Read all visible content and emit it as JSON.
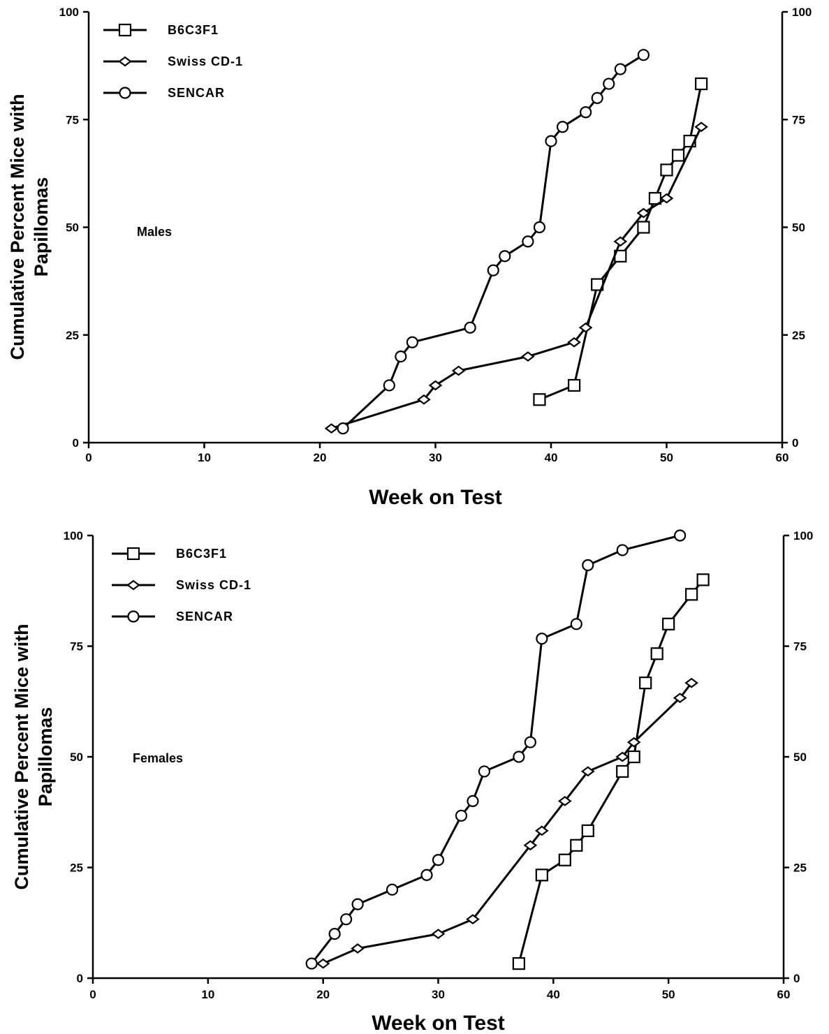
{
  "chart_data": [
    {
      "type": "line",
      "panel_label": "Males",
      "xlabel": "Week on Test",
      "ylabel_line1": "Cumulative Percent Mice with",
      "ylabel_line2": "Papillomas",
      "xlim": [
        0,
        60
      ],
      "ylim": [
        0,
        100
      ],
      "x_ticks": [
        "0",
        "10",
        "20",
        "30",
        "40",
        "50",
        "60"
      ],
      "y_ticks": [
        "0",
        "25",
        "50",
        "75",
        "100"
      ],
      "legend_position": "top-left",
      "series": [
        {
          "name": "B6C3F1",
          "marker": "square",
          "x": [
            39,
            42,
            44,
            46,
            48,
            49,
            50,
            51,
            52,
            53
          ],
          "y": [
            10,
            13.3,
            36.7,
            43.3,
            50,
            56.7,
            63.3,
            66.7,
            70,
            83.3
          ]
        },
        {
          "name": "Swiss CD-1",
          "marker": "diamond",
          "x": [
            21,
            29,
            30,
            32,
            38,
            42,
            43,
            46,
            48,
            50,
            53
          ],
          "y": [
            3.3,
            10,
            13.3,
            16.7,
            20,
            23.3,
            26.7,
            46.7,
            53.3,
            56.7,
            73.3
          ]
        },
        {
          "name": "SENCAR",
          "marker": "circle",
          "x": [
            22,
            26,
            27,
            28,
            33,
            35,
            36,
            38,
            39,
            40,
            41,
            43,
            44,
            45,
            46,
            48
          ],
          "y": [
            3.3,
            13.3,
            20,
            23.3,
            26.7,
            40,
            43.3,
            46.7,
            50,
            70,
            73.3,
            76.7,
            80,
            83.3,
            86.7,
            90
          ]
        }
      ]
    },
    {
      "type": "line",
      "panel_label": "Females",
      "xlabel": "Week on Test",
      "ylabel_line1": "Cumulative Percent Mice with",
      "ylabel_line2": "Papillomas",
      "xlim": [
        0,
        60
      ],
      "ylim": [
        0,
        100
      ],
      "x_ticks": [
        "0",
        "10",
        "20",
        "30",
        "40",
        "50",
        "60"
      ],
      "y_ticks": [
        "0",
        "25",
        "50",
        "75",
        "100"
      ],
      "legend_position": "top-left",
      "series": [
        {
          "name": "B6C3F1",
          "marker": "square",
          "x": [
            37,
            39,
            41,
            42,
            43,
            46,
            47,
            48,
            49,
            50,
            52,
            53
          ],
          "y": [
            3.3,
            23.3,
            26.7,
            30,
            33.3,
            46.7,
            50,
            66.7,
            73.3,
            80,
            86.7,
            90
          ]
        },
        {
          "name": "Swiss CD-1",
          "marker": "diamond",
          "x": [
            20,
            23,
            30,
            33,
            38,
            39,
            41,
            43,
            46,
            47,
            51,
            52
          ],
          "y": [
            3.3,
            6.7,
            10,
            13.3,
            30,
            33.3,
            40,
            46.7,
            50,
            53.3,
            63.3,
            66.7
          ]
        },
        {
          "name": "SENCAR",
          "marker": "circle",
          "x": [
            19,
            21,
            22,
            23,
            26,
            29,
            30,
            32,
            33,
            34,
            37,
            38,
            39,
            42,
            43,
            46,
            51
          ],
          "y": [
            3.3,
            10,
            13.3,
            16.7,
            20,
            23.3,
            26.7,
            36.7,
            40,
            46.7,
            50,
            53.3,
            76.7,
            80,
            93.3,
            96.7,
            100
          ]
        }
      ]
    }
  ]
}
